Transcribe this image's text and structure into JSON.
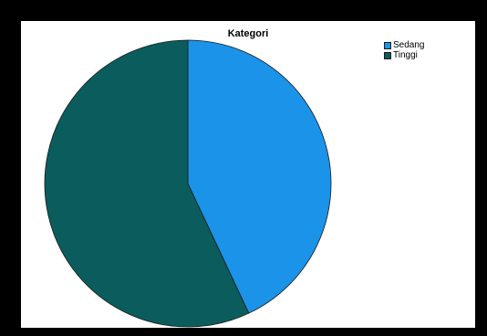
{
  "chart_data": {
    "type": "pie",
    "title": "Kategori",
    "slices": [
      {
        "label": "Sedang",
        "value": 43,
        "color": "#1a93e8"
      },
      {
        "label": "Tinggi",
        "value": 57,
        "color": "#0b5c5c"
      }
    ],
    "start_angle_deg": 0,
    "direction": "clockwise",
    "legend_position": "top-right"
  }
}
